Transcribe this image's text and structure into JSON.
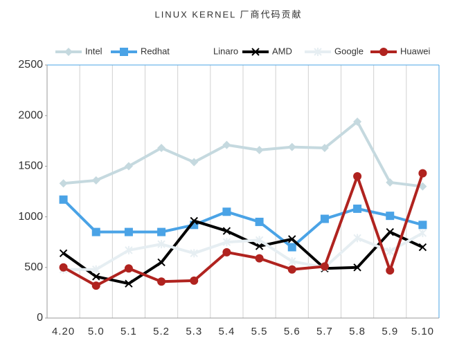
{
  "chart_data": {
    "type": "line",
    "title": "LINUX KERNEL 厂商代码贡献",
    "categories": [
      "4.20",
      "5.0",
      "5.1",
      "5.2",
      "5.3",
      "5.4",
      "5.5",
      "5.6",
      "5.7",
      "5.8",
      "5.9",
      "5.10"
    ],
    "series": [
      {
        "name": "Intel",
        "color": "#c5d9df",
        "marker": "diamond",
        "values": [
          1330,
          1360,
          1500,
          1680,
          1540,
          1710,
          1660,
          1690,
          1680,
          1940,
          1340,
          1300
        ]
      },
      {
        "name": "Redhat",
        "color": "#4aa3e6",
        "marker": "square",
        "values": [
          1170,
          850,
          850,
          850,
          920,
          1050,
          950,
          700,
          980,
          1080,
          1010,
          920
        ]
      },
      {
        "name": "Linaro",
        "color": "#ffffff",
        "marker": "none",
        "values": [
          null,
          null,
          null,
          null,
          null,
          null,
          null,
          null,
          null,
          null,
          null,
          null
        ]
      },
      {
        "name": "AMD",
        "color": "#000000",
        "marker": "x",
        "values": [
          640,
          410,
          340,
          550,
          960,
          860,
          710,
          780,
          490,
          500,
          850,
          700
        ]
      },
      {
        "name": "Google",
        "color": "#e6eef2",
        "marker": "star",
        "values": [
          480,
          480,
          670,
          730,
          640,
          750,
          770,
          560,
          500,
          790,
          660,
          840
        ]
      },
      {
        "name": "Huawei",
        "color": "#b0231f",
        "marker": "circle",
        "values": [
          500,
          320,
          490,
          360,
          370,
          650,
          590,
          480,
          510,
          1400,
          470,
          1430
        ]
      }
    ],
    "ylim": [
      0,
      2500
    ],
    "yticks": [
      0,
      500,
      1000,
      1500,
      2000,
      2500
    ],
    "grid": true,
    "legend": "top"
  }
}
